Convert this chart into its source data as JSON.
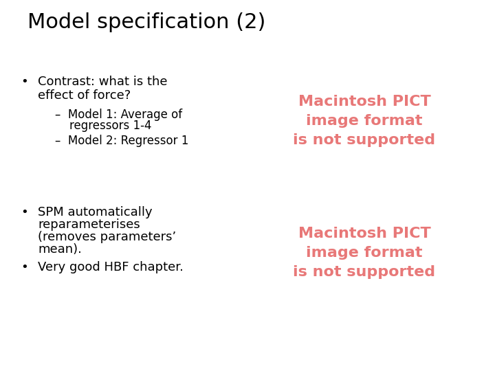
{
  "title": "Model specification (2)",
  "title_fontsize": 22,
  "background_color": "#ffffff",
  "text_color": "#000000",
  "pict_color": "#e87878",
  "bullet1_line1": "Contrast: what is the",
  "bullet1_line2": "effect of force?",
  "sub1_line1": "–  Model 1: Average of",
  "sub1_line2": "    regressors 1-4",
  "sub2": "–  Model 2: Regressor 1",
  "bullet2_line1": "SPM automatically",
  "bullet2_line2": "reparameterises",
  "bullet2_line3": "(removes parameters’",
  "bullet2_line4": "mean).",
  "bullet3": "Very good HBF chapter.",
  "pict_text1_line1": "Macintosh PICT",
  "pict_text1_line2": "image format",
  "pict_text1_line3": "is not supported",
  "pict_text2_line1": "Macintosh PICT",
  "pict_text2_line2": "image format",
  "pict_text2_line3": "is not supported",
  "body_fontsize": 13,
  "sub_fontsize": 12,
  "pict_fontsize": 16
}
